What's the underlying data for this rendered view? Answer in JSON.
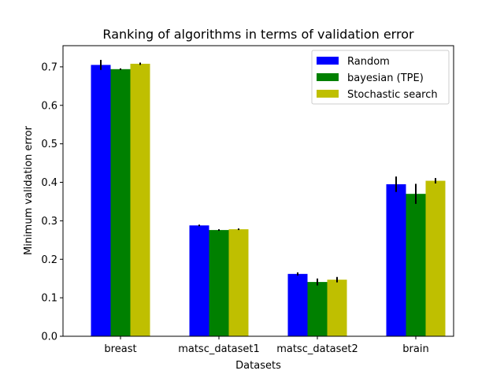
{
  "chart_data": {
    "type": "bar",
    "title": "Ranking of algorithms in terms of validation error",
    "xlabel": "Datasets",
    "ylabel": "Minimum validation error",
    "categories": [
      "breast",
      "matsc_dataset1",
      "matsc_dataset2",
      "brain"
    ],
    "ylim": [
      0,
      0.755
    ],
    "yticks": [
      0.0,
      0.1,
      0.2,
      0.3,
      0.4,
      0.5,
      0.6,
      0.7
    ],
    "ytick_labels": [
      "0.0",
      "0.1",
      "0.2",
      "0.3",
      "0.4",
      "0.5",
      "0.6",
      "0.7"
    ],
    "grid": false,
    "legend_position": "top-right",
    "series": [
      {
        "name": "Random",
        "color": "#0000ff",
        "values": [
          0.705,
          0.288,
          0.162,
          0.395
        ],
        "errors": [
          0.013,
          0.002,
          0.004,
          0.02
        ]
      },
      {
        "name": "bayesian (TPE)",
        "color": "#008000",
        "values": [
          0.694,
          0.276,
          0.141,
          0.37
        ],
        "errors": [
          0.002,
          0.002,
          0.009,
          0.026
        ]
      },
      {
        "name": "Stochastic search",
        "color": "#bfbf00",
        "values": [
          0.708,
          0.278,
          0.147,
          0.404
        ],
        "errors": [
          0.003,
          0.002,
          0.007,
          0.007
        ]
      }
    ]
  }
}
